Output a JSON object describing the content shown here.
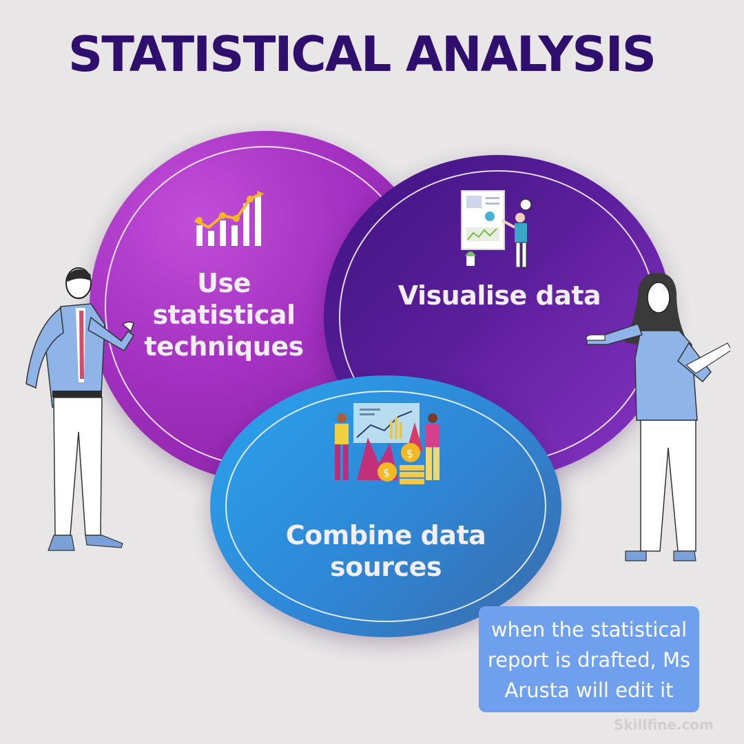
{
  "title": "STATISTICAL ANALYSIS",
  "circles": [
    {
      "label_line1": "Use statistical",
      "label_line2": "techniques",
      "icon": "bar-chart-trend-icon"
    },
    {
      "label_line1": "Visualise data",
      "icon": "presentation-person-icon"
    },
    {
      "label_line1": "Combine data",
      "label_line2": "sources",
      "icon": "team-finance-chart-icon"
    }
  ],
  "note": {
    "line1": "when the statistical",
    "line2": "report is drafted, Ms",
    "line3": "Arusta will edit it"
  },
  "watermark": "Skillfine.com",
  "colors": {
    "title": "#2e0f6e",
    "circle_magenta": "#a230c0",
    "circle_violet": "#5a1e9a",
    "circle_blue": "#2f86d5",
    "note_bg": "#6fa0ee",
    "background": "#e8e6e6"
  }
}
